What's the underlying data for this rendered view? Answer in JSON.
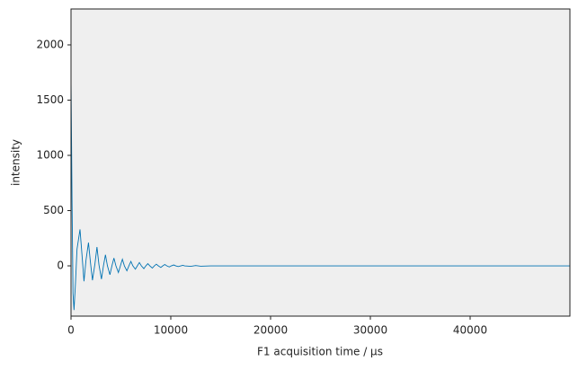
{
  "chart_data": {
    "type": "line",
    "xlabel": "F1 acquisition time / µs",
    "ylabel": "intensity",
    "x": [
      0,
      100,
      200,
      300,
      450,
      600,
      900,
      1100,
      1300,
      1500,
      1750,
      1950,
      2150,
      2400,
      2600,
      2800,
      3050,
      3250,
      3450,
      3650,
      3900,
      4100,
      4300,
      4500,
      4750,
      4950,
      5150,
      5350,
      5600,
      5800,
      6000,
      6200,
      6450,
      6650,
      6850,
      7050,
      7300,
      7500,
      7700,
      7900,
      8150,
      8350,
      8550,
      8750,
      9000,
      9200,
      9400,
      9600,
      9850,
      10050,
      10300,
      10500,
      10750,
      11000,
      11200,
      11400,
      12000,
      12500,
      13000,
      14000,
      16000,
      50000
    ],
    "series": [
      {
        "color": "#0072b2",
        "values": [
          1700,
          600,
          -250,
          -400,
          -150,
          150,
          330,
          100,
          -140,
          50,
          210,
          30,
          -130,
          20,
          170,
          10,
          -120,
          0,
          100,
          0,
          -80,
          0,
          70,
          0,
          -60,
          0,
          60,
          0,
          -45,
          0,
          40,
          0,
          -30,
          0,
          30,
          0,
          -25,
          0,
          20,
          0,
          -20,
          0,
          15,
          0,
          -15,
          0,
          12,
          0,
          -10,
          0,
          8,
          0,
          -6,
          0,
          5,
          0,
          -4,
          3,
          -3,
          0,
          0,
          0
        ]
      }
    ],
    "xlim": [
      0,
      50000
    ],
    "ylim": [
      -455,
      2325
    ],
    "xticks": [
      0,
      10000,
      20000,
      30000,
      40000
    ],
    "yticks": [
      0,
      500,
      1000,
      1500,
      2000
    ],
    "background": "#efefef"
  }
}
